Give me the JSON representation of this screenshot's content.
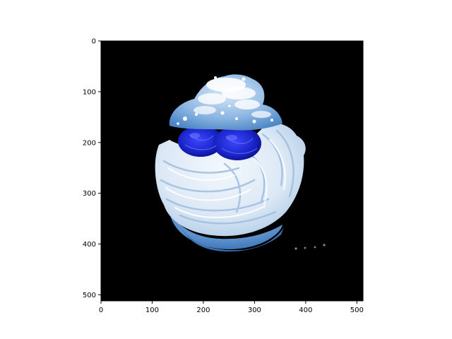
{
  "image": {
    "subject": "cream-puff",
    "background_color": "#000000",
    "colors": {
      "cream": "#dfeaf6",
      "cream_shadow": "#a9c7e6",
      "pastry": "#5d94cf",
      "pastry_light": "#8bb5e3",
      "berry": "#1f2bd6",
      "berry_dark": "#0d1490",
      "sugar": "#ffffff"
    }
  },
  "axes": {
    "x_ticks": [
      0,
      100,
      200,
      300,
      400,
      500
    ],
    "y_ticks": [
      0,
      100,
      200,
      300,
      400,
      500
    ],
    "x_range": [
      0,
      512
    ],
    "y_range": [
      0,
      512
    ],
    "y_inverted": true
  }
}
